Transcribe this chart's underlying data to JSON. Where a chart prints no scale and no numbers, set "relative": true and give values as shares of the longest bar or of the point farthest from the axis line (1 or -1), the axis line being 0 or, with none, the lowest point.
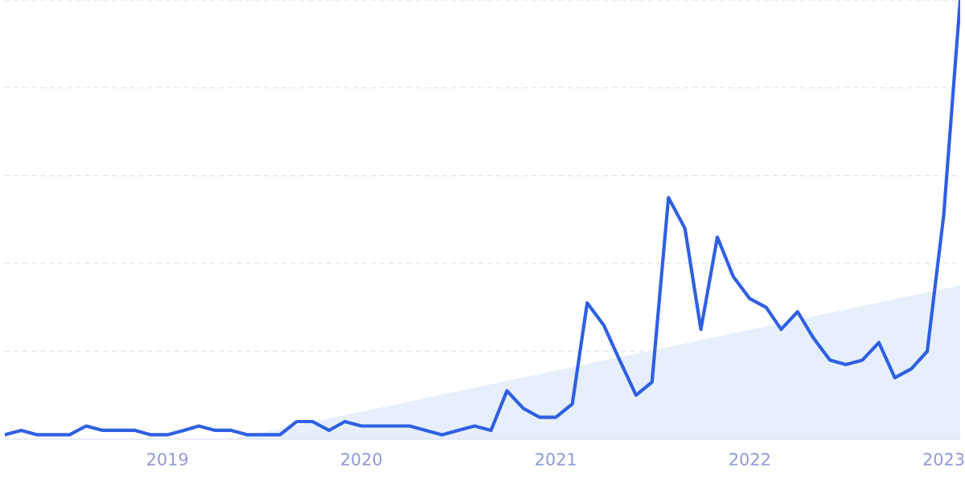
{
  "chart_data": {
    "type": "line",
    "relative": true,
    "grid": "y",
    "marker": "none",
    "line_style": "solid",
    "x": [
      "2018-03",
      "2018-04",
      "2018-05",
      "2018-06",
      "2018-07",
      "2018-08",
      "2018-09",
      "2018-10",
      "2018-11",
      "2018-12",
      "2019-01",
      "2019-02",
      "2019-03",
      "2019-04",
      "2019-05",
      "2019-06",
      "2019-07",
      "2019-08",
      "2019-09",
      "2019-10",
      "2019-11",
      "2019-12",
      "2020-01",
      "2020-02",
      "2020-03",
      "2020-04",
      "2020-05",
      "2020-06",
      "2020-07",
      "2020-08",
      "2020-09",
      "2020-10",
      "2020-11",
      "2020-12",
      "2021-01",
      "2021-02",
      "2021-03",
      "2021-04",
      "2021-05",
      "2021-06",
      "2021-07",
      "2021-08",
      "2021-09",
      "2021-10",
      "2021-11",
      "2021-12",
      "2022-01",
      "2022-02",
      "2022-03",
      "2022-04",
      "2022-05",
      "2022-06",
      "2022-07",
      "2022-08",
      "2022-09",
      "2022-10",
      "2022-11",
      "2022-12",
      "2023-01",
      "2023-02"
    ],
    "xlim": [
      "2018-03",
      "2023-02"
    ],
    "xticks": [
      "2019",
      "2020",
      "2021",
      "2022",
      "2023"
    ],
    "series": [
      {
        "type": "area",
        "color": "#e6effb",
        "x": [
          "2019-05",
          "2023-02"
        ],
        "values": [
          0,
          0.35
        ]
      },
      {
        "color": "#2f5fe3",
        "values": [
          0.01,
          0.02,
          0.01,
          0.01,
          0.01,
          0.03,
          0.02,
          0.02,
          0.02,
          0.01,
          0.01,
          0.02,
          0.03,
          0.02,
          0.02,
          0.01,
          0.01,
          0.01,
          0.04,
          0.04,
          0.02,
          0.04,
          0.03,
          0.03,
          0.03,
          0.03,
          0.02,
          0.01,
          0.02,
          0.03,
          0.02,
          0.11,
          0.07,
          0.05,
          0.05,
          0.08,
          0.31,
          0.26,
          0.18,
          0.1,
          0.13,
          0.55,
          0.48,
          0.25,
          0.46,
          0.37,
          0.32,
          0.3,
          0.25,
          0.29,
          0.23,
          0.18,
          0.17,
          0.18,
          0.22,
          0.14,
          0.16,
          0.2,
          0.51,
          1
        ]
      }
    ]
  }
}
